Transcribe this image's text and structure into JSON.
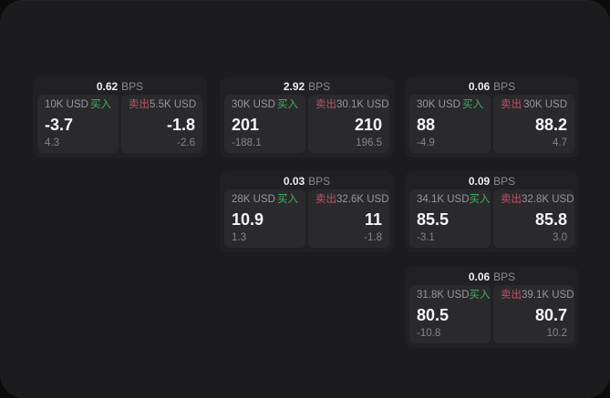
{
  "labels": {
    "buy": "买入",
    "sell": "卖出",
    "bps": "BPS"
  },
  "colors": {
    "window_background": "#1c1c1e",
    "card_background": "#212123",
    "panel_background": "#2a2a2d",
    "buy_green": "#43b164",
    "sell_red": "#bf5366",
    "primary_text": "#f6f6f6",
    "muted_text": "#97979c"
  },
  "cards": [
    {
      "bps": "0.62",
      "buy": {
        "size": "10K USD",
        "price": "-3.7",
        "delta": "4.3"
      },
      "sell": {
        "size": "5.5K USD",
        "price": "-1.8",
        "delta": "-2.6"
      }
    },
    {
      "bps": "2.92",
      "buy": {
        "size": "30K USD",
        "price": "201",
        "delta": "-188.1"
      },
      "sell": {
        "size": "30.1K USD",
        "price": "210",
        "delta": "196.5"
      }
    },
    {
      "bps": "0.06",
      "buy": {
        "size": "30K USD",
        "price": "88",
        "delta": "-4.9"
      },
      "sell": {
        "size": "30K USD",
        "price": "88.2",
        "delta": "4.7"
      }
    },
    {
      "bps": "0.03",
      "buy": {
        "size": "28K USD",
        "price": "10.9",
        "delta": "1.3"
      },
      "sell": {
        "size": "32.6K USD",
        "price": "11",
        "delta": "-1.8"
      }
    },
    {
      "bps": "0.09",
      "buy": {
        "size": "34.1K USD",
        "price": "85.5",
        "delta": "-3.1"
      },
      "sell": {
        "size": "32.8K USD",
        "price": "85.8",
        "delta": "3.0"
      }
    },
    {
      "bps": "0.06",
      "buy": {
        "size": "31.8K USD",
        "price": "80.5",
        "delta": "-10.8"
      },
      "sell": {
        "size": "39.1K USD",
        "price": "80.7",
        "delta": "10.2"
      }
    }
  ]
}
